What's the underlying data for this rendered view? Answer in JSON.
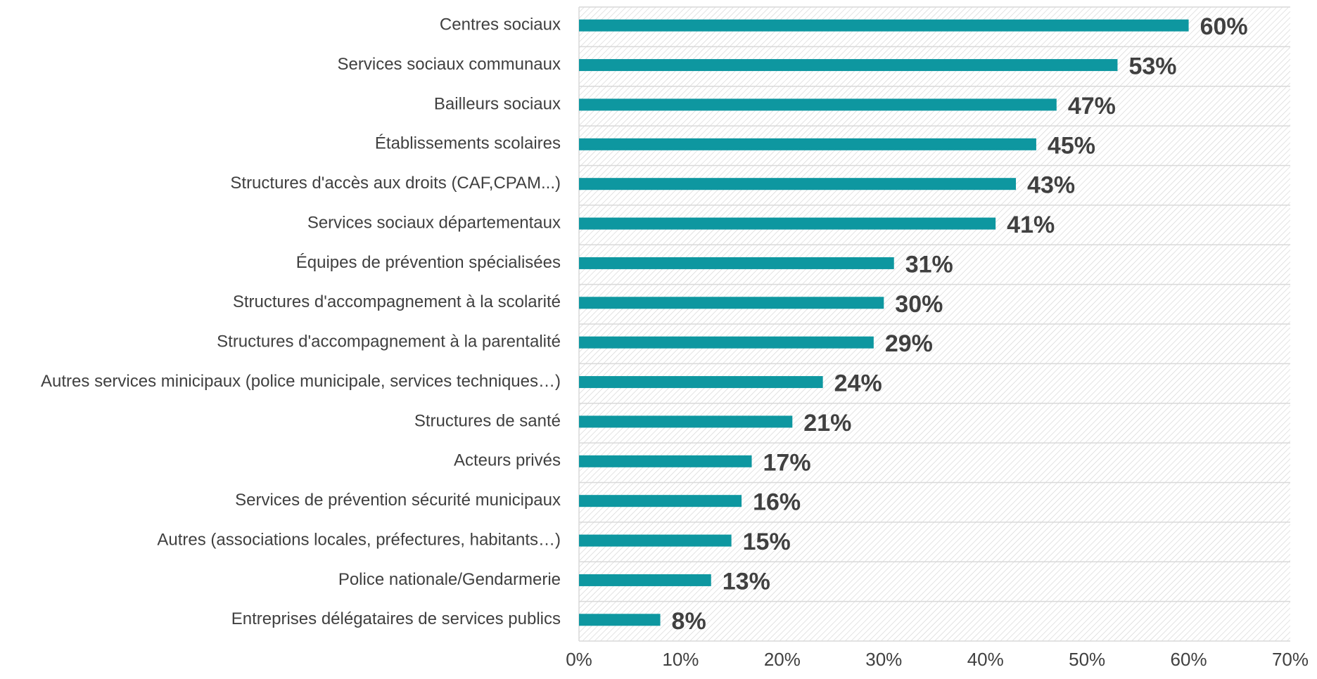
{
  "chart_data": {
    "type": "barh",
    "categories": [
      "Centres sociaux",
      "Services sociaux communaux",
      "Bailleurs sociaux",
      "Établissements scolaires ",
      "Structures d'accès aux droits (CAF,CPAM...)",
      "Services sociaux départementaux",
      "Équipes de prévention spécialisées",
      "Structures d'accompagnement à la scolarité",
      "Structures d'accompagnement à la parentalité",
      "Autres services minicipaux (police municipale, services techniques…)",
      "Structures de santé",
      "Acteurs privés",
      "Services de prévention sécurité municipaux",
      "Autres (associations locales, préfectures, habitants…)",
      "Police nationale/Gendarmerie",
      "Entreprises délégataires de services publics"
    ],
    "values": [
      60,
      53,
      47,
      45,
      43,
      41,
      31,
      30,
      29,
      24,
      21,
      17,
      16,
      15,
      13,
      8
    ],
    "value_labels": [
      "60%",
      "53%",
      "47%",
      "45%",
      "43%",
      "41%",
      "31%",
      "30%",
      "29%",
      "24%",
      "21%",
      "17%",
      "16%",
      "15%",
      "13%",
      "8%"
    ],
    "color": "#0e97a0",
    "xlim": [
      0,
      70
    ],
    "xticks": [
      {
        "value": 0,
        "label": "0%"
      },
      {
        "value": 10,
        "label": "10%"
      },
      {
        "value": 20,
        "label": "20%"
      },
      {
        "value": 30,
        "label": "30%"
      },
      {
        "value": 40,
        "label": "40%"
      },
      {
        "value": 50,
        "label": "50%"
      },
      {
        "value": 60,
        "label": "60%"
      },
      {
        "value": 70,
        "label": "70%"
      }
    ]
  }
}
